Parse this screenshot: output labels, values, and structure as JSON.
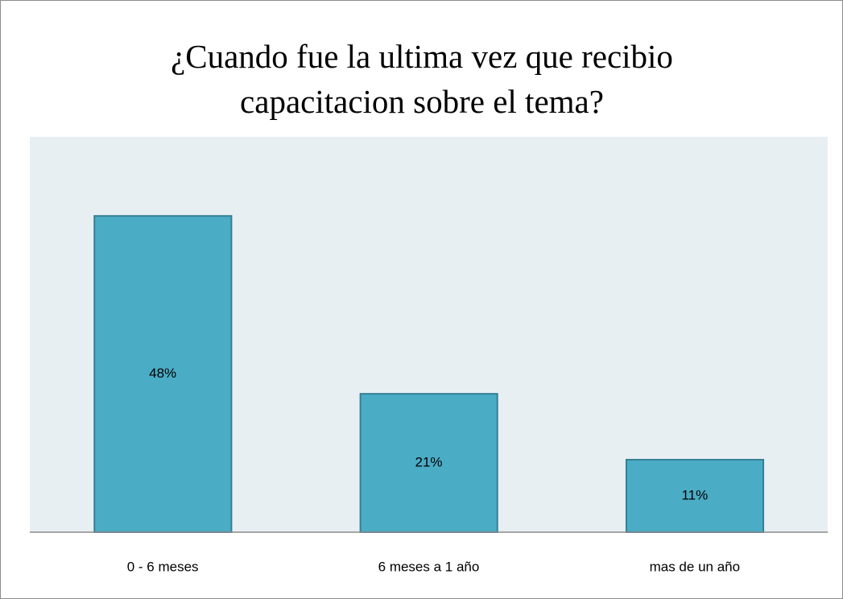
{
  "chart_data": {
    "type": "bar",
    "title": "¿Cuando fue la ultima vez que recibio capacitacion sobre el tema?",
    "categories": [
      "0 - 6 meses",
      "6 meses a 1 año",
      "mas de un año"
    ],
    "values": [
      48,
      21,
      11
    ],
    "value_labels": [
      "48%",
      "21%",
      "11%"
    ],
    "color": "#4bacc6"
  }
}
